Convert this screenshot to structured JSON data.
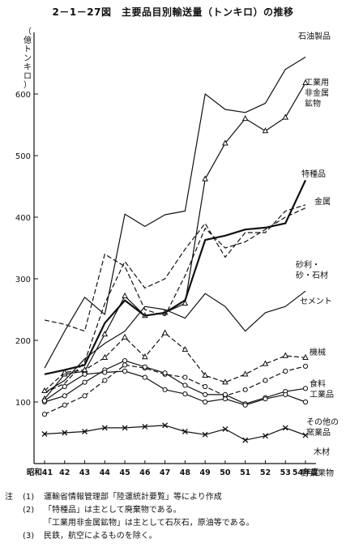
{
  "title": "2－1－27図　主要品目別輸送量（トンキロ）の推移",
  "chart_data": {
    "type": "line",
    "ylabel": "（億トンキロ）",
    "xlabel": "年度",
    "x": [
      "昭和41",
      "42",
      "43",
      "44",
      "45",
      "46",
      "47",
      "48",
      "49",
      "50",
      "51",
      "52",
      "53",
      "54年度"
    ],
    "ylim": [
      0,
      700
    ],
    "yticks": [
      100,
      200,
      300,
      400,
      500,
      600
    ],
    "grid": false,
    "legend": "inline-right",
    "series": [
      {
        "name": "石油製品",
        "style": "solid",
        "marker": "none",
        "values": [
          155,
          215,
          270,
          242,
          405,
          385,
          404,
          410,
          600,
          575,
          570,
          585,
          640,
          660
        ]
      },
      {
        "name": "工業用非金属鉱物",
        "style": "solid",
        "marker": "triangle",
        "values": [
          105,
          145,
          150,
          210,
          272,
          240,
          245,
          260,
          462,
          520,
          560,
          540,
          562,
          618
        ]
      },
      {
        "name": "特種品",
        "style": "solid-bold",
        "marker": "none",
        "values": [
          145,
          152,
          160,
          228,
          265,
          240,
          245,
          265,
          363,
          370,
          380,
          383,
          390,
          460
        ]
      },
      {
        "name": "金属",
        "style": "dashed",
        "marker": "none",
        "values": [
          115,
          130,
          165,
          260,
          328,
          285,
          300,
          348,
          390,
          335,
          375,
          375,
          410,
          420
        ]
      },
      {
        "name": "砂利・砂・石材",
        "style": "dashed",
        "marker": "none",
        "values": [
          233,
          226,
          215,
          340,
          320,
          250,
          240,
          305,
          382,
          350,
          360,
          380,
          400,
          415
        ]
      },
      {
        "name": "セメント",
        "style": "solid",
        "marker": "none",
        "values": [
          115,
          135,
          170,
          195,
          215,
          255,
          250,
          236,
          276,
          255,
          215,
          245,
          255,
          280
        ]
      },
      {
        "name": "機械",
        "style": "dashed",
        "marker": "triangle",
        "values": [
          118,
          148,
          152,
          172,
          205,
          173,
          212,
          185,
          143,
          132,
          145,
          162,
          175,
          172
        ]
      },
      {
        "name": "食料工業品",
        "style": "dashed",
        "marker": "circle",
        "values": [
          80,
          95,
          110,
          135,
          160,
          155,
          145,
          140,
          125,
          110,
          120,
          135,
          150,
          158
        ]
      },
      {
        "name": "その他の窯業品",
        "style": "solid",
        "marker": "circle",
        "values": [
          100,
          110,
          132,
          152,
          167,
          157,
          147,
          127,
          112,
          112,
          97,
          107,
          117,
          122
        ]
      },
      {
        "name": "木材",
        "style": "solid",
        "marker": "circle",
        "values": [
          102,
          125,
          145,
          148,
          150,
          140,
          120,
          113,
          100,
          105,
          95,
          105,
          112,
          100
        ]
      },
      {
        "name": "野菜果物",
        "style": "solid",
        "marker": "x",
        "values": [
          48,
          50,
          52,
          58,
          58,
          60,
          62,
          52,
          47,
          56,
          38,
          45,
          58,
          46
        ]
      }
    ],
    "annotations": [
      {
        "text": "石油製品"
      },
      {
        "text": "工業用非金属鉱物",
        "lines": [
          "工業用",
          "非金属",
          "鉱物"
        ]
      },
      {
        "text": "特種品"
      },
      {
        "text": "金属"
      },
      {
        "text": "砂利・砂・石材",
        "lines": [
          "砂利・",
          "砂・石材"
        ]
      },
      {
        "text": "セメント"
      },
      {
        "text": "機械"
      },
      {
        "text": "食料工業品",
        "lines": [
          "食料",
          "工業品"
        ]
      },
      {
        "text": "その他の窯業品",
        "lines": [
          "その他の",
          "窯業品"
        ]
      },
      {
        "text": "木材"
      },
      {
        "text": "野菜果物"
      }
    ]
  },
  "notes": {
    "mark": "注",
    "items": [
      {
        "num": "(1)",
        "text": "運輸省情報管理部「陸運統計要覧」等により作成"
      },
      {
        "num": "(2)",
        "text": "「特種品」は主として廃棄物である。"
      },
      {
        "num": "",
        "text": "「工業用非金属鉱物」は主として石灰石，原油等である。"
      },
      {
        "num": "(3)",
        "text": "民鉄，航空によるものを除く。"
      }
    ]
  }
}
